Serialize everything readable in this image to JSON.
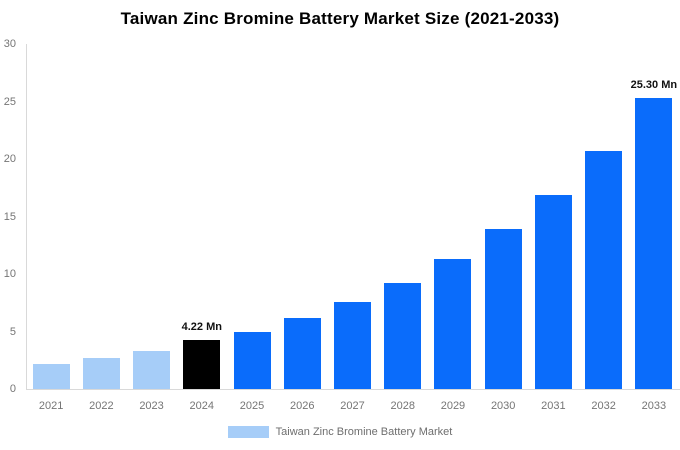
{
  "colors": {
    "bar_past": "#a6cdf8",
    "bar_base_year": "#000000",
    "bar_forecast": "#0a6cfb",
    "axis_line": "#d9d9d9",
    "tick_text": "#757575",
    "legend_text": "#6e6e6e",
    "annotation_text": "#111111",
    "title_text": "#000000",
    "background": "#ffffff"
  },
  "chart_data": {
    "type": "bar",
    "title": "Taiwan Zinc Bromine Battery Market Size (2021-2033)",
    "unit": "Mn",
    "categories": [
      "2021",
      "2022",
      "2023",
      "2024",
      "2025",
      "2026",
      "2027",
      "2028",
      "2029",
      "2030",
      "2031",
      "2032",
      "2033"
    ],
    "values": [
      2.2,
      2.7,
      3.3,
      4.22,
      5.0,
      6.2,
      7.6,
      9.2,
      11.3,
      13.9,
      16.9,
      20.7,
      25.3
    ],
    "bar_colors": [
      "#a6cdf8",
      "#a6cdf8",
      "#a6cdf8",
      "#000000",
      "#0a6cfb",
      "#0a6cfb",
      "#0a6cfb",
      "#0a6cfb",
      "#0a6cfb",
      "#0a6cfb",
      "#0a6cfb",
      "#0a6cfb",
      "#0a6cfb"
    ],
    "annotations": [
      {
        "category": "2024",
        "text": "4.22 Mn"
      },
      {
        "category": "2033",
        "text": "25.30 Mn"
      }
    ],
    "xlabel": "",
    "ylabel": "",
    "ylim": [
      0,
      30
    ],
    "yticks": [
      0,
      5,
      10,
      15,
      20,
      25,
      30
    ],
    "grid": false,
    "legend_position": "bottom",
    "legend": [
      "Taiwan Zinc Bromine Battery Market"
    ]
  }
}
